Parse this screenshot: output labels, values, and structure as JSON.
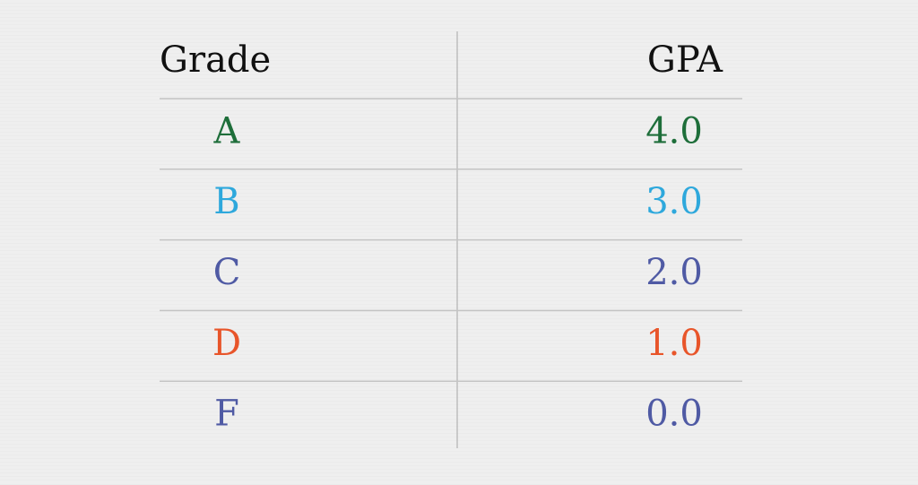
{
  "table": {
    "header": [
      "Grade",
      "GPA"
    ],
    "rows": [
      [
        "A",
        "4.0"
      ],
      [
        "B",
        "3.0"
      ],
      [
        "C",
        "2.0"
      ],
      [
        "D",
        "1.0"
      ],
      [
        "F",
        "0.0"
      ]
    ]
  }
}
